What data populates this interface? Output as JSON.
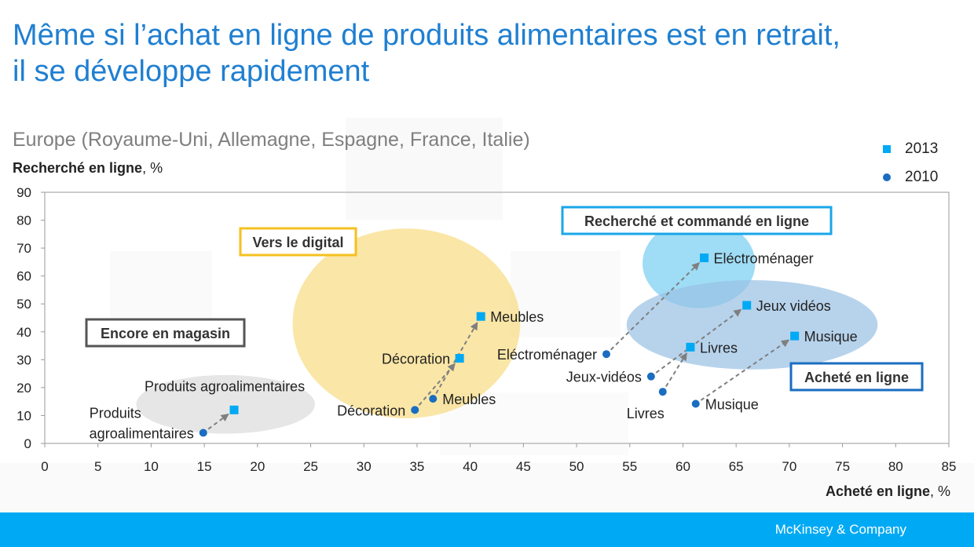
{
  "title_line1": "Même si l’achat en ligne de produits alimentaires est en retrait,",
  "title_line2": "il se développe rapidement",
  "subtitle": "Europe (Royaume-Uni, Allemagne, Espagne, France, Italie)",
  "ylabel_bold": "Recherché en ligne",
  "ylabel_unit": ", %",
  "xlabel_bold": "Acheté en ligne",
  "xlabel_unit": ", %",
  "footer_brand": "McKinsey & Company",
  "colors": {
    "title": "#1f7fd1",
    "marker_2013": "#00a9f4",
    "marker_2010": "#1a6dc1",
    "arrow": "#7f7f7f",
    "zone_grey": "#d6d6d6",
    "zone_yellow": "#f6d66b",
    "zone_lightblue": "#7fd0f2",
    "zone_blue": "#98c0e4"
  },
  "chart_data": {
    "type": "scatter",
    "xlim": [
      0,
      85
    ],
    "ylim": [
      0,
      90
    ],
    "xticks": [
      0,
      5,
      10,
      15,
      20,
      25,
      30,
      35,
      40,
      45,
      50,
      55,
      60,
      65,
      70,
      75,
      80,
      85
    ],
    "yticks": [
      0,
      10,
      20,
      30,
      40,
      50,
      60,
      70,
      80,
      90
    ],
    "grid": false,
    "legend_position": "top-right",
    "legend": [
      {
        "name": "2013",
        "marker": "square"
      },
      {
        "name": "2010",
        "marker": "circle"
      }
    ],
    "series": [
      {
        "name": "2013",
        "marker": "square",
        "points": [
          {
            "label": "Produits agroalimentaires",
            "x": 17.8,
            "y": 12,
            "label_pos": "above"
          },
          {
            "label": "Décoration",
            "x": 39,
            "y": 30.5,
            "label_pos": "left"
          },
          {
            "label": "Meubles",
            "x": 41,
            "y": 45.5,
            "label_pos": "right"
          },
          {
            "label": "Eléctroménager",
            "x": 62,
            "y": 66.5,
            "label_pos": "right"
          },
          {
            "label": "Jeux vidéos",
            "x": 66,
            "y": 49.5,
            "label_pos": "right"
          },
          {
            "label": "Livres",
            "x": 60.7,
            "y": 34.5,
            "label_pos": "right"
          },
          {
            "label": "Musique",
            "x": 70.5,
            "y": 38.5,
            "label_pos": "right"
          }
        ]
      },
      {
        "name": "2010",
        "marker": "circle",
        "points": [
          {
            "label_lines": [
              "Produits",
              "agroalimentaires"
            ],
            "x": 14.9,
            "y": 3.8,
            "label_pos": "left"
          },
          {
            "label": "Décoration",
            "x": 34.8,
            "y": 12,
            "label_pos": "left"
          },
          {
            "label": "Meubles",
            "x": 36.5,
            "y": 16,
            "label_pos": "right"
          },
          {
            "label": "Eléctroménager",
            "x": 52.8,
            "y": 32,
            "label_pos": "left"
          },
          {
            "label": "Jeux-vidéos",
            "x": 57,
            "y": 24,
            "label_pos": "left"
          },
          {
            "label": "Livres",
            "x": 58.1,
            "y": 18.5,
            "label_pos": "below-left"
          },
          {
            "label": "Musique",
            "x": 61.2,
            "y": 14.2,
            "label_pos": "right"
          }
        ]
      }
    ],
    "arrows": [
      {
        "from": [
          14.9,
          3.8
        ],
        "to": [
          17.8,
          12
        ]
      },
      {
        "from": [
          34.8,
          12
        ],
        "to": [
          39,
          30.5
        ]
      },
      {
        "from": [
          36.5,
          16
        ],
        "to": [
          41,
          45.5
        ]
      },
      {
        "from": [
          52.8,
          32
        ],
        "to": [
          62,
          66.5
        ]
      },
      {
        "from": [
          57,
          24
        ],
        "to": [
          66,
          49.5
        ]
      },
      {
        "from": [
          58.1,
          18.5
        ],
        "to": [
          60.7,
          34.5
        ]
      },
      {
        "from": [
          61.2,
          14.2
        ],
        "to": [
          70.5,
          38.5
        ]
      }
    ],
    "zones": [
      {
        "label": "Encore en magasin",
        "color": "#d6d6d6",
        "cx": 17,
        "cy": 14,
        "rx": 8.4,
        "ry": 10.5,
        "label_style": "grey"
      },
      {
        "label": "Vers le digital",
        "color": "#f6d66b",
        "cx": 34,
        "cy": 43,
        "rx": 10.7,
        "ry": 34,
        "label_style": "yellow"
      },
      {
        "label": "Recherché et commandé en ligne",
        "color": "#7fd0f2",
        "cx": 61.5,
        "cy": 64.5,
        "rx": 5.3,
        "ry": 16,
        "label_style": "lightblue"
      },
      {
        "label": "Acheté en ligne",
        "color": "#98c0e4",
        "cx": 66.5,
        "cy": 42.5,
        "rx": 11.8,
        "ry": 16,
        "label_style": "blue"
      }
    ]
  }
}
